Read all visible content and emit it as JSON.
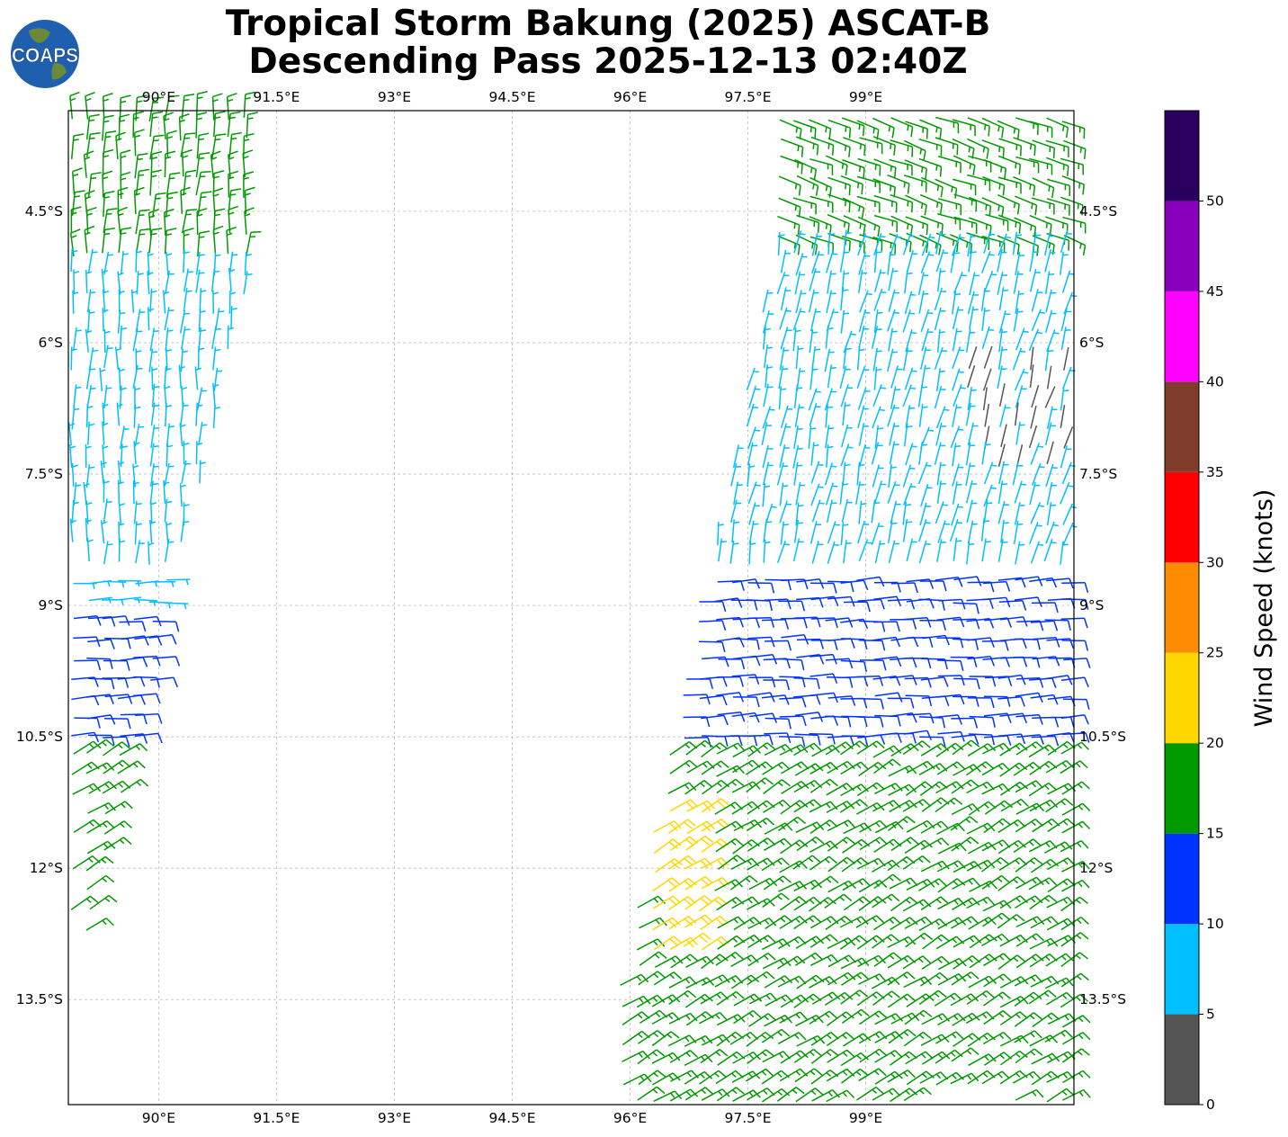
{
  "title": {
    "line1": "Tropical Storm Bakung (2025) ASCAT-B",
    "line2": "Descending Pass 2025-12-13 02:40Z"
  },
  "logo": {
    "text": "COAPS",
    "icon": "globe-icon"
  },
  "map": {
    "lon_range": [
      88.85,
      101.65
    ],
    "lat_range": [
      -14.7,
      -3.35
    ],
    "lon_ticks": [
      {
        "value": 90.0,
        "label": "90°E"
      },
      {
        "value": 91.5,
        "label": "91.5°E"
      },
      {
        "value": 93.0,
        "label": "93°E"
      },
      {
        "value": 94.5,
        "label": "94.5°E"
      },
      {
        "value": 96.0,
        "label": "96°E"
      },
      {
        "value": 97.5,
        "label": "97.5°E"
      },
      {
        "value": 99.0,
        "label": "99°E"
      }
    ],
    "lat_ticks": [
      {
        "value": -4.5,
        "label": "4.5°S"
      },
      {
        "value": -6.0,
        "label": "6°S"
      },
      {
        "value": -7.5,
        "label": "7.5°S"
      },
      {
        "value": -9.0,
        "label": "9°S"
      },
      {
        "value": -10.5,
        "label": "10.5°S"
      },
      {
        "value": -12.0,
        "label": "12°S"
      },
      {
        "value": -13.5,
        "label": "13.5°S"
      }
    ],
    "grid": true
  },
  "colorbar": {
    "label": "Wind Speed (knots)",
    "bins": [
      {
        "min": 0,
        "max": 5,
        "color": "#555555"
      },
      {
        "min": 5,
        "max": 10,
        "color": "#00bfff"
      },
      {
        "min": 10,
        "max": 15,
        "color": "#0033ff"
      },
      {
        "min": 15,
        "max": 20,
        "color": "#009900"
      },
      {
        "min": 20,
        "max": 25,
        "color": "#ffd700"
      },
      {
        "min": 25,
        "max": 30,
        "color": "#ff8c00"
      },
      {
        "min": 30,
        "max": 35,
        "color": "#ff0000"
      },
      {
        "min": 35,
        "max": 40,
        "color": "#7f3c2a"
      },
      {
        "min": 40,
        "max": 45,
        "color": "#ff00ff"
      },
      {
        "min": 45,
        "max": 50,
        "color": "#8800bb"
      },
      {
        "min": 50,
        "max": 55,
        "color": "#2a005f"
      }
    ],
    "tick_labels": [
      "0",
      "5",
      "10",
      "15",
      "20",
      "25",
      "30",
      "35",
      "40",
      "45",
      "50"
    ]
  },
  "chart_data": {
    "type": "wind_barbs",
    "units": "knots",
    "swaths": [
      {
        "lon_range": [
          88.9,
          91.2
        ],
        "lat_range": [
          -12.9,
          -3.4
        ],
        "speed_by_lat": [
          {
            "lat_range": [
              -5.2,
              -3.4
            ],
            "speed": 17
          },
          {
            "lat_range": [
              -9.0,
              -5.2
            ],
            "speed": 8
          },
          {
            "lat_range": [
              -10.6,
              -9.0
            ],
            "speed": 12
          },
          {
            "lat_range": [
              -12.9,
              -10.6
            ],
            "speed": 17
          }
        ]
      },
      {
        "lon_range": [
          96.0,
          101.6
        ],
        "lat_range": [
          -14.7,
          -3.4
        ],
        "speed_by_lat": [
          {
            "lat_range": [
              -4.8,
              -3.4
            ],
            "speed": 16
          },
          {
            "lat_range": [
              -8.6,
              -4.8
            ],
            "speed": 8
          },
          {
            "lat_range": [
              -10.6,
              -8.6
            ],
            "speed": 12
          },
          {
            "lat_range": [
              -14.7,
              -10.6
            ],
            "speed": 17
          },
          {
            "lat_range": [
              -13.0,
              -11.2
            ],
            "lon_range": [
              96.3,
              97.0
            ],
            "speed": 22
          },
          {
            "lat_range": [
              -7.6,
              -6.1
            ],
            "lon_range": [
              100.3,
              101.6
            ],
            "speed": 4
          }
        ]
      }
    ]
  }
}
